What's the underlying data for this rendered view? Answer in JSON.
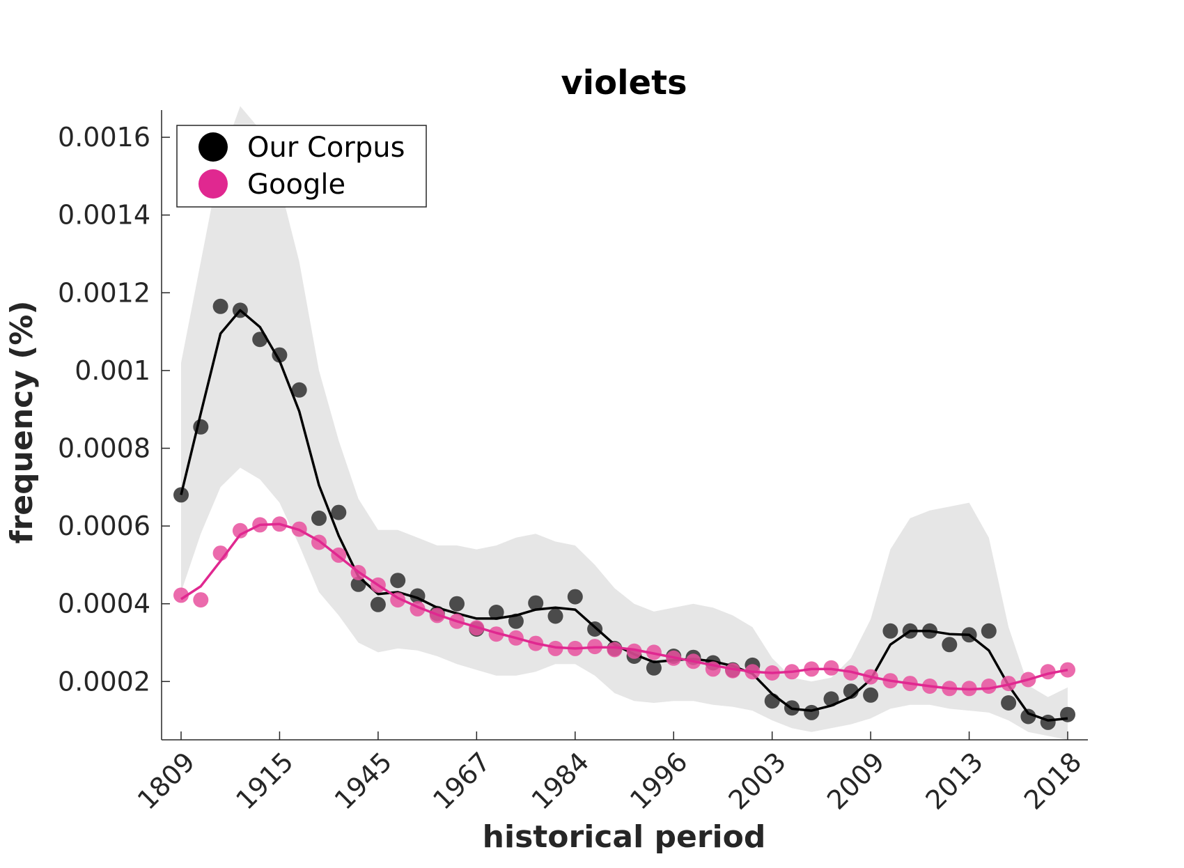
{
  "chart_data": {
    "type": "scatter",
    "title": "violets",
    "xlabel": "historical period",
    "ylabel": "frequency (%)",
    "ylim": [
      5e-05,
      0.00167
    ],
    "y_ticks": [
      0.0002,
      0.0004,
      0.0006,
      0.0008,
      0.001,
      0.0012,
      0.0014,
      0.0016
    ],
    "y_tick_labels": [
      "0.0002",
      "0.0004",
      "0.0006",
      "0.0008",
      "0.001",
      "0.0012",
      "0.0014",
      "0.0016"
    ],
    "x_tick_labels": [
      "1809",
      "1915",
      "1945",
      "1967",
      "1984",
      "1996",
      "2003",
      "2009",
      "2013",
      "2018"
    ],
    "grid": false,
    "legend_position": "top-left",
    "series": [
      {
        "name": "Our Corpus",
        "color": "#000000",
        "marker_color": "#3a3a3a",
        "points": [
          0.00068,
          0.000855,
          0.001165,
          0.001155,
          0.00108,
          0.00104,
          0.00095,
          0.00062,
          0.000635,
          0.00045,
          0.000398,
          0.00046,
          0.00042,
          0.000375,
          0.0004,
          0.000335,
          0.000378,
          0.000355,
          0.000402,
          0.000368,
          0.000418,
          0.000335,
          0.000285,
          0.000265,
          0.000235,
          0.000265,
          0.000262,
          0.000248,
          0.00023,
          0.000242,
          0.00015,
          0.000132,
          0.00012,
          0.000155,
          0.000175,
          0.000165,
          0.00033,
          0.00033,
          0.00033,
          0.000295,
          0.00032,
          0.00033,
          0.000145,
          0.00011,
          9.5e-05,
          0.000115
        ],
        "smooth": [
          0.00068,
          0.00089,
          0.001095,
          0.001155,
          0.001112,
          0.001025,
          0.000895,
          0.000705,
          0.000575,
          0.00047,
          0.000425,
          0.00043,
          0.000415,
          0.00039,
          0.000375,
          0.000362,
          0.000362,
          0.00037,
          0.000385,
          0.00039,
          0.000385,
          0.00034,
          0.000295,
          0.00027,
          0.00025,
          0.000255,
          0.000258,
          0.000252,
          0.00024,
          0.00022,
          0.000168,
          0.00013,
          0.000125,
          0.000138,
          0.00016,
          0.000205,
          0.000295,
          0.00033,
          0.00033,
          0.000322,
          0.00032,
          0.00028,
          0.00019,
          0.000118,
          0.0001,
          0.000105
        ],
        "band_upper": [
          0.00102,
          0.00128,
          0.00154,
          0.00168,
          0.00162,
          0.00148,
          0.00128,
          0.001,
          0.00082,
          0.00067,
          0.00059,
          0.00059,
          0.00057,
          0.00055,
          0.00055,
          0.00054,
          0.00055,
          0.00057,
          0.00058,
          0.00056,
          0.00055,
          0.0005,
          0.00044,
          0.0004,
          0.00038,
          0.00039,
          0.0004,
          0.00039,
          0.00037,
          0.00034,
          0.00026,
          0.00021,
          0.0002,
          0.00021,
          0.00026,
          0.00036,
          0.00054,
          0.00062,
          0.00064,
          0.00065,
          0.00066,
          0.00057,
          0.00034,
          0.00019,
          0.00016,
          0.000185
        ],
        "band_lower": [
          0.00043,
          0.00058,
          0.0007,
          0.00075,
          0.00072,
          0.00066,
          0.00055,
          0.00043,
          0.00037,
          0.0003,
          0.000275,
          0.000285,
          0.00028,
          0.000265,
          0.000245,
          0.00023,
          0.000215,
          0.000215,
          0.000225,
          0.000245,
          0.000245,
          0.000215,
          0.00017,
          0.00015,
          0.000145,
          0.00015,
          0.00015,
          0.00014,
          0.000135,
          0.000125,
          0.0001,
          8e-05,
          7e-05,
          8e-05,
          9e-05,
          0.000105,
          0.00013,
          0.00014,
          0.00014,
          0.00013,
          0.000125,
          0.00012,
          0.0001,
          7e-05,
          6e-05,
          5e-05
        ]
      },
      {
        "name": "Google",
        "color": "#e02890",
        "marker_color": "#e8509e",
        "points": [
          0.000422,
          0.00041,
          0.00053,
          0.000588,
          0.000603,
          0.000605,
          0.000592,
          0.000558,
          0.000525,
          0.00048,
          0.000448,
          0.00041,
          0.000387,
          0.00037,
          0.000355,
          0.000338,
          0.000322,
          0.000312,
          0.000298,
          0.000285,
          0.000285,
          0.00029,
          0.000282,
          0.000278,
          0.000275,
          0.00026,
          0.000252,
          0.000232,
          0.000228,
          0.000225,
          0.000222,
          0.000225,
          0.000232,
          0.000235,
          0.000222,
          0.000212,
          0.000202,
          0.000195,
          0.000188,
          0.000182,
          0.000182,
          0.000188,
          0.000195,
          0.000205,
          0.000225,
          0.00023
        ],
        "smooth": [
          0.000412,
          0.000445,
          0.00051,
          0.000578,
          0.000603,
          0.000605,
          0.00059,
          0.000562,
          0.000522,
          0.000482,
          0.000448,
          0.000415,
          0.000392,
          0.000372,
          0.000355,
          0.00034,
          0.000325,
          0.000312,
          0.000298,
          0.000288,
          0.000285,
          0.000288,
          0.000288,
          0.000282,
          0.000272,
          0.000262,
          0.000252,
          0.000242,
          0.000232,
          0.000225,
          0.000222,
          0.000225,
          0.000232,
          0.000232,
          0.000225,
          0.000212,
          0.000202,
          0.000195,
          0.000188,
          0.000182,
          0.00018,
          0.000182,
          0.000192,
          0.000205,
          0.00022,
          0.00023
        ]
      }
    ],
    "band_color": "#e6e6e6"
  }
}
